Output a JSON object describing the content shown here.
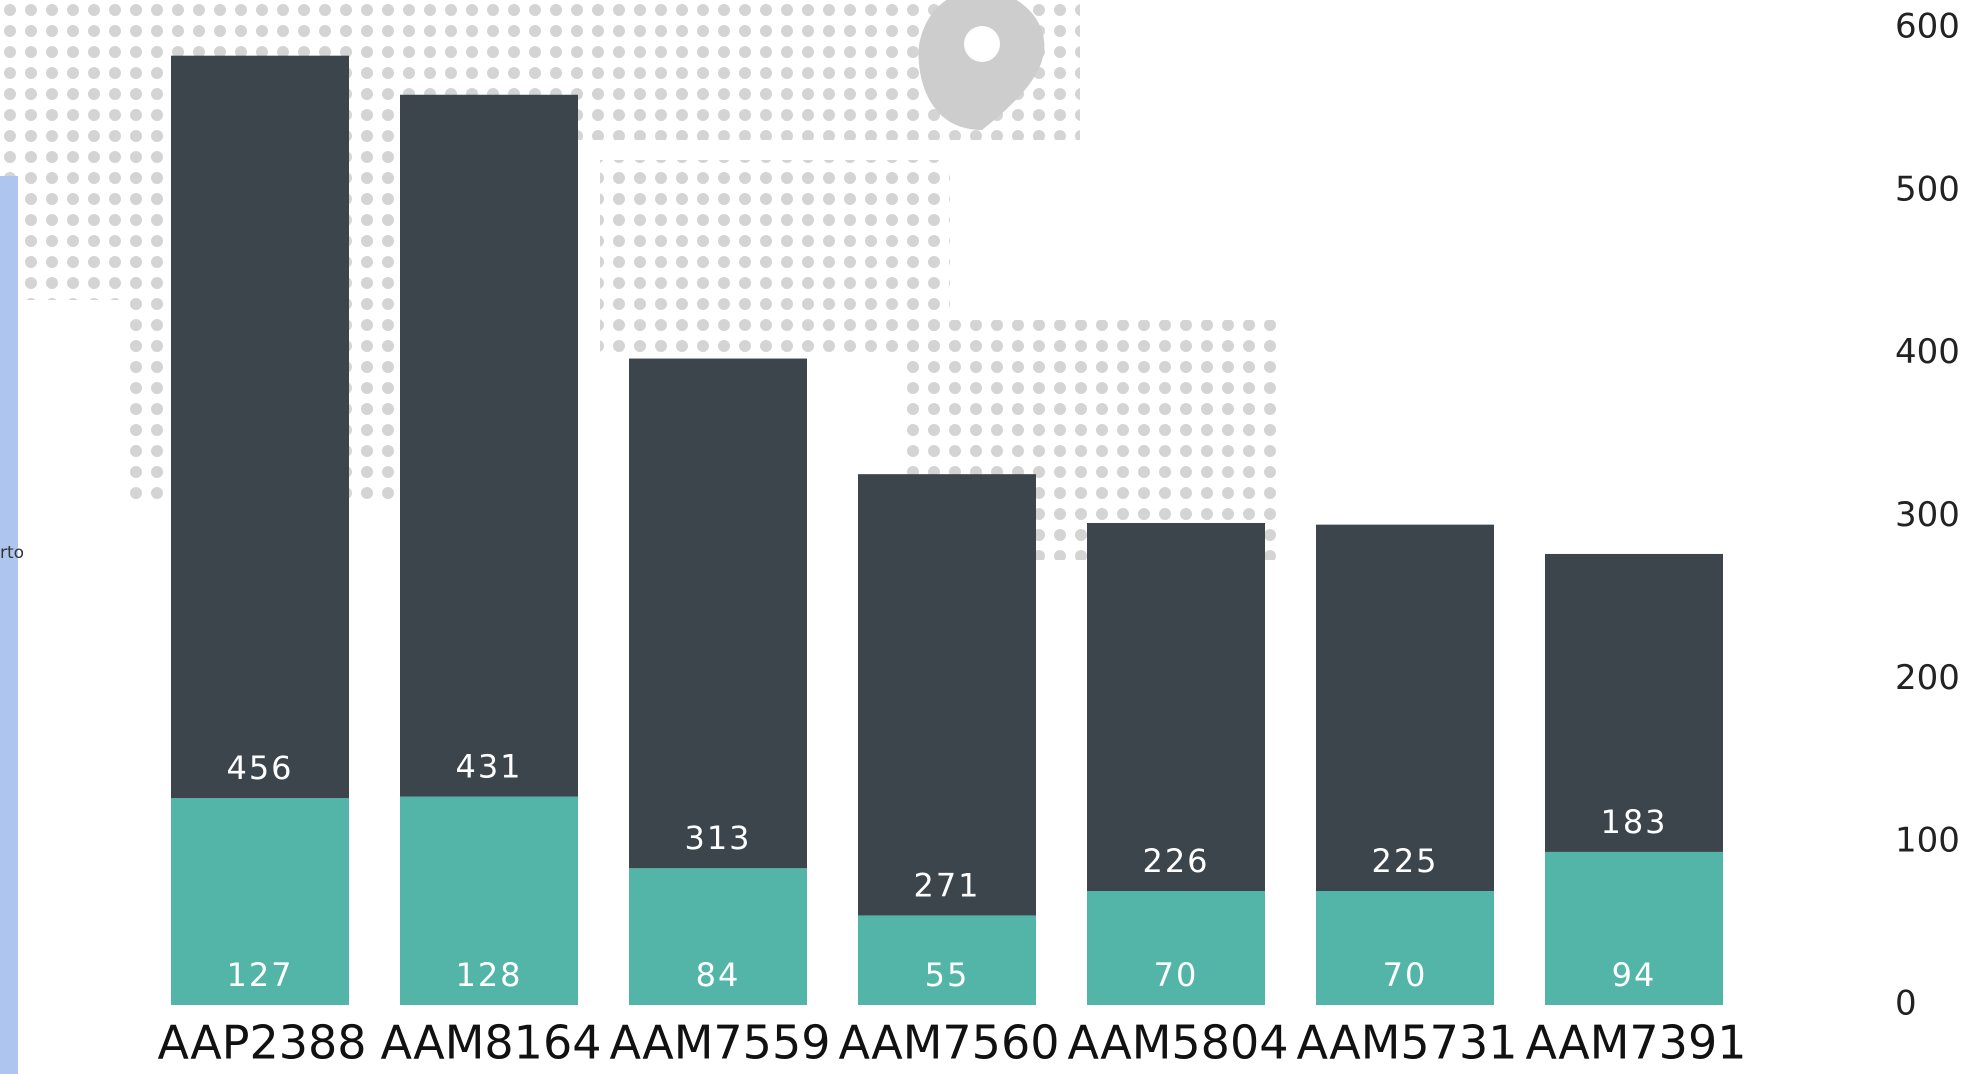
{
  "chart_data": {
    "type": "stacked_bar",
    "categories": [
      "AAP2388",
      "AAM8164",
      "AAM7559",
      "AAM7560",
      "AAM5804",
      "AAM5731",
      "AAM7391"
    ],
    "series": [
      {
        "color": "#52b5a8",
        "values": [
          127,
          128,
          84,
          55,
          70,
          70,
          94
        ]
      },
      {
        "color": "#3b454b",
        "values": [
          456,
          431,
          313,
          271,
          226,
          225,
          183
        ]
      }
    ],
    "ylim": [
      0,
      600
    ],
    "yticks": [
      0,
      100,
      200,
      300,
      400,
      500,
      600
    ],
    "y_axis_side": "right",
    "grid": false,
    "side_label": "rto"
  }
}
